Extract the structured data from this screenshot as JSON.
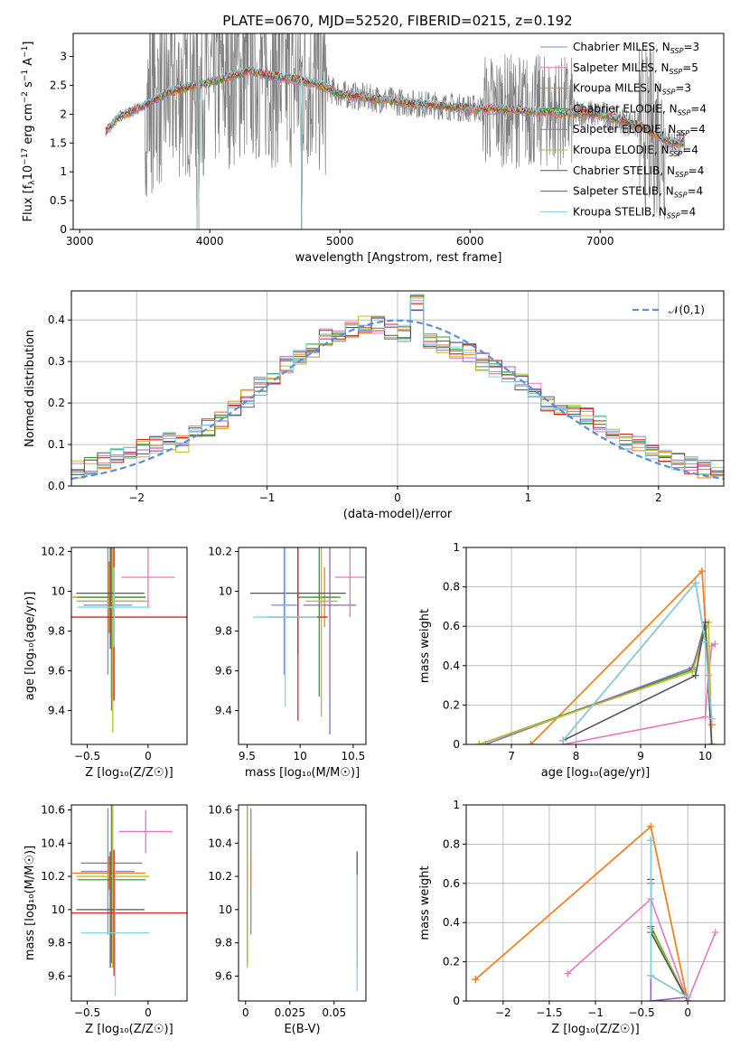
{
  "figure_title": "PLATE=0670, MJD=52520, FIBERID=0215, z=0.192",
  "legend_labels": [
    "Chabrier MILES, N_SSP=3",
    "Salpeter MILES, N_SSP=5",
    "Kroupa MILES, N_SSP=3",
    "Chabrier ELODIE, N_SSP=4",
    "Salpeter ELODIE, N_SSP=4",
    "Kroupa ELODIE, N_SSP=4",
    "Chabrier STELIB, N_SSP=4",
    "Salpeter STELIB, N_SSP=4",
    "Kroupa STELIB, N_SSP=4"
  ],
  "colors": [
    "#6f8fd0",
    "#e377c2",
    "#ff7f0e",
    "#2ca02c",
    "#9467bd",
    "#bcbd22",
    "#555555",
    "#d62728",
    "#7fd6e0"
  ],
  "data_color": "#808080",
  "chart_data": [
    {
      "type": "line",
      "panel": "spectrum",
      "title": "PLATE=0670, MJD=52520, FIBERID=0215, z=0.192",
      "xlabel": "wavelength [Angstrom, rest frame]",
      "ylabel": "Flux [f_λ 10^-17 erg cm^-2 s^-1 A^-1]",
      "xlim": [
        2950,
        7950
      ],
      "ylim": [
        0,
        3.4
      ],
      "xticks": [
        3000,
        4000,
        5000,
        6000,
        7000
      ],
      "yticks": [
        0.0,
        0.5,
        1.0,
        1.5,
        2.0,
        2.5,
        3.0
      ],
      "data_wavelength_range": [
        3200,
        7650
      ],
      "model_continuum": {
        "x": [
          3200,
          3300,
          3500,
          3700,
          4000,
          4300,
          4500,
          4800,
          5000,
          5500,
          6000,
          6500,
          7000,
          7300,
          7550
        ],
        "y": [
          1.7,
          1.95,
          2.15,
          2.4,
          2.55,
          2.75,
          2.65,
          2.55,
          2.35,
          2.2,
          2.1,
          2.05,
          2.0,
          1.8,
          1.5
        ]
      },
      "series_names": [
        "Chabrier MILES",
        "Salpeter MILES",
        "Kroupa MILES",
        "Chabrier ELODIE",
        "Salpeter ELODIE",
        "Kroupa ELODIE",
        "Chabrier STELIB",
        "Salpeter STELIB",
        "Kroupa STELIB"
      ],
      "n_ssp": [
        3,
        5,
        3,
        4,
        4,
        4,
        4,
        4,
        4
      ],
      "legend": "upper right"
    },
    {
      "type": "step",
      "panel": "residuals",
      "xlabel": "(data-model)/error",
      "ylabel": "Normed distribution",
      "xlim": [
        -2.5,
        2.5
      ],
      "ylim": [
        0,
        0.47
      ],
      "xticks": [
        -2,
        -1,
        0,
        1,
        2
      ],
      "yticks": [
        0.0,
        0.1,
        0.2,
        0.3,
        0.4
      ],
      "reference": {
        "name": "𝒩(0,1)",
        "mean": 0,
        "sigma": 1
      },
      "bins": [
        -2.5,
        -2.4,
        -2.3,
        -2.2,
        -2.1,
        -2.0,
        -1.9,
        -1.8,
        -1.7,
        -1.6,
        -1.5,
        -1.4,
        -1.3,
        -1.2,
        -1.1,
        -1.0,
        -0.9,
        -0.8,
        -0.7,
        -0.6,
        -0.5,
        -0.4,
        -0.3,
        -0.2,
        -0.1,
        0.0,
        0.1,
        0.2,
        0.3,
        0.4,
        0.5,
        0.6,
        0.7,
        0.8,
        0.9,
        1.0,
        1.1,
        1.2,
        1.3,
        1.4,
        1.5,
        1.6,
        1.7,
        1.8,
        1.9,
        2.0,
        2.1,
        2.2,
        2.3,
        2.4,
        2.5
      ],
      "histogram_values": [
        0.04,
        0.05,
        0.06,
        0.07,
        0.08,
        0.09,
        0.1,
        0.11,
        0.1,
        0.13,
        0.14,
        0.16,
        0.19,
        0.21,
        0.24,
        0.26,
        0.29,
        0.31,
        0.33,
        0.36,
        0.37,
        0.38,
        0.39,
        0.39,
        0.37,
        0.37,
        0.44,
        0.35,
        0.34,
        0.33,
        0.32,
        0.3,
        0.28,
        0.27,
        0.25,
        0.23,
        0.2,
        0.19,
        0.18,
        0.17,
        0.15,
        0.13,
        0.11,
        0.1,
        0.08,
        0.07,
        0.06,
        0.05,
        0.04,
        0.04
      ],
      "legend": "upper right"
    },
    {
      "type": "scatter_errorbar",
      "panel": "age_vs_Z",
      "xlabel": "Z [log10(Z/Z☉)]",
      "ylabel": "age [log10(age/yr)]",
      "xlim": [
        -0.63,
        0.32
      ],
      "ylim": [
        9.23,
        10.22
      ],
      "xticks": [
        -0.5,
        0.0
      ],
      "yticks": [
        9.4,
        9.6,
        9.8,
        10.0,
        10.2
      ],
      "points": [
        {
          "x": -0.33,
          "y": 9.93,
          "xerr": 0.2,
          "yerr": 0.35
        },
        {
          "x": 0.0,
          "y": 10.07,
          "xerr": 0.22,
          "yerr": 0.15
        },
        {
          "x": -0.32,
          "y": 9.97,
          "xerr": 0.3,
          "yerr": 0.18
        },
        {
          "x": -0.3,
          "y": 9.97,
          "xerr": 0.28,
          "yerr": 0.5
        },
        {
          "x": -0.3,
          "y": 9.95,
          "xerr": 0.27,
          "yerr": 0.55
        },
        {
          "x": -0.29,
          "y": 9.95,
          "xerr": 0.3,
          "yerr": 0.66
        },
        {
          "x": -0.31,
          "y": 9.99,
          "xerr": 0.28,
          "yerr": 0.28
        },
        {
          "x": -0.28,
          "y": 9.87,
          "xerr": 0.6,
          "yerr": 0.42
        },
        {
          "x": -0.28,
          "y": 9.92,
          "xerr": 0.3,
          "yerr": 0.2
        }
      ]
    },
    {
      "type": "scatter_errorbar",
      "panel": "age_vs_mass",
      "xlabel": "mass [log10(M/M☉)]",
      "ylabel": "",
      "xlim": [
        9.42,
        10.62
      ],
      "ylim": [
        9.23,
        10.22
      ],
      "xticks": [
        9.5,
        10.0,
        10.5
      ],
      "yticks": [
        9.4,
        9.6,
        9.8,
        10.0,
        10.2
      ],
      "points": [
        {
          "x": 9.85,
          "y": 9.93,
          "xerr": 0.12,
          "yerr": 0.35
        },
        {
          "x": 10.47,
          "y": 10.07,
          "xerr": 0.14,
          "yerr": 0.2
        },
        {
          "x": 10.23,
          "y": 9.97,
          "xerr": 0.1,
          "yerr": 0.15
        },
        {
          "x": 10.18,
          "y": 9.97,
          "xerr": 0.2,
          "yerr": 0.5
        },
        {
          "x": 10.28,
          "y": 9.93,
          "xerr": 0.25,
          "yerr": 0.65
        },
        {
          "x": 10.2,
          "y": 9.95,
          "xerr": 0.15,
          "yerr": 0.58
        },
        {
          "x": 9.98,
          "y": 9.99,
          "xerr": 0.45,
          "yerr": 0.3
        },
        {
          "x": 9.98,
          "y": 9.87,
          "xerr": 0.28,
          "yerr": 0.52
        },
        {
          "x": 9.86,
          "y": 9.87,
          "xerr": 0.3,
          "yerr": 0.45
        }
      ]
    },
    {
      "type": "line",
      "panel": "massweight_vs_age",
      "xlabel": "age [log10(age/yr)]",
      "ylabel": "mass weight",
      "xlim": [
        6.3,
        10.3
      ],
      "ylim": [
        0,
        1.0
      ],
      "xticks": [
        7,
        8,
        9,
        10
      ],
      "yticks": [
        0.0,
        0.2,
        0.4,
        0.6,
        0.8,
        1.0
      ],
      "series": [
        {
          "x": [
            7.3,
            9.95,
            10.1
          ],
          "y": [
            0.0,
            0.88,
            0.1
          ]
        },
        {
          "x": [
            7.8,
            10.0,
            10.05,
            10.1,
            10.15
          ],
          "y": [
            0.0,
            0.14,
            0.35,
            0.5,
            0.51
          ]
        },
        {
          "x": [
            7.3,
            9.95,
            10.1
          ],
          "y": [
            0.0,
            0.88,
            0.1
          ]
        },
        {
          "x": [
            6.5,
            9.8,
            10.0,
            10.1
          ],
          "y": [
            0.0,
            0.38,
            0.62,
            0.0
          ]
        },
        {
          "x": [
            6.6,
            9.8,
            10.0,
            10.1
          ],
          "y": [
            0.0,
            0.39,
            0.6,
            0.0
          ]
        },
        {
          "x": [
            6.5,
            9.8,
            10.05,
            10.1
          ],
          "y": [
            0.0,
            0.37,
            0.62,
            0.0
          ]
        },
        {
          "x": [
            7.8,
            9.85,
            10.0,
            10.1
          ],
          "y": [
            0.02,
            0.35,
            0.62,
            0.0
          ]
        },
        {
          "x": [
            7.8,
            9.85,
            10.0,
            10.1
          ],
          "y": [
            0.02,
            0.82,
            0.52,
            0.13
          ]
        },
        {
          "x": [
            7.8,
            9.85,
            10.0,
            10.1
          ],
          "y": [
            0.02,
            0.82,
            0.52,
            0.13
          ]
        }
      ]
    },
    {
      "type": "scatter_errorbar",
      "panel": "mass_vs_Z",
      "xlabel": "Z [log10(Z/Z☉)]",
      "ylabel": "mass [log10(M/M☉)]",
      "xlim": [
        -0.63,
        0.32
      ],
      "ylim": [
        9.45,
        10.63
      ],
      "xticks": [
        -0.5,
        0.0
      ],
      "yticks": [
        9.6,
        9.8,
        10.0,
        10.2,
        10.4,
        10.6
      ],
      "points": [
        {
          "x": -0.33,
          "y": 10.23,
          "xerr": 0.22,
          "yerr": 0.38
        },
        {
          "x": -0.02,
          "y": 10.47,
          "xerr": 0.22,
          "yerr": 0.13
        },
        {
          "x": -0.32,
          "y": 10.22,
          "xerr": 0.3,
          "yerr": 0.1
        },
        {
          "x": -0.3,
          "y": 10.18,
          "xerr": 0.28,
          "yerr": 0.5
        },
        {
          "x": -0.3,
          "y": 10.28,
          "xerr": 0.25,
          "yerr": 0.6
        },
        {
          "x": -0.29,
          "y": 10.2,
          "xerr": 0.3,
          "yerr": 0.55
        },
        {
          "x": -0.31,
          "y": 10.0,
          "xerr": 0.28,
          "yerr": 0.35
        },
        {
          "x": -0.28,
          "y": 9.98,
          "xerr": 0.6,
          "yerr": 0.38
        },
        {
          "x": -0.27,
          "y": 9.86,
          "xerr": 0.28,
          "yerr": 0.38
        }
      ]
    },
    {
      "type": "scatter_errorbar",
      "panel": "mass_vs_EBV",
      "xlabel": "E(B-V)",
      "ylabel": "",
      "xlim": [
        -0.004,
        0.068
      ],
      "ylim": [
        9.45,
        10.63
      ],
      "xticks": [
        0.0,
        0.025,
        0.05
      ],
      "yticks": [
        9.6,
        9.8,
        10.0,
        10.2,
        10.4,
        10.6
      ],
      "points": [
        {
          "x": 0.003,
          "y": 10.23,
          "xerr": 0.0,
          "yerr": 0.38
        },
        {
          "x": 0.001,
          "y": 10.47,
          "xerr": 0.0,
          "yerr": 0.13
        },
        {
          "x": 0.003,
          "y": 10.22,
          "xerr": 0.0,
          "yerr": 0.1
        },
        {
          "x": 0.001,
          "y": 10.18,
          "xerr": 0.0,
          "yerr": 0.5
        },
        {
          "x": 0.001,
          "y": 10.28,
          "xerr": 0.0,
          "yerr": 0.6
        },
        {
          "x": 0.001,
          "y": 10.2,
          "xerr": 0.0,
          "yerr": 0.55
        },
        {
          "x": 0.063,
          "y": 10.0,
          "xerr": 0.0,
          "yerr": 0.35
        },
        {
          "x": 0.063,
          "y": 9.98,
          "xerr": 0.0,
          "yerr": 0.23
        },
        {
          "x": 0.063,
          "y": 9.86,
          "xerr": 0.0,
          "yerr": 0.35
        }
      ]
    },
    {
      "type": "line",
      "panel": "massweight_vs_Z",
      "xlabel": "Z [log10(Z/Z☉)]",
      "ylabel": "mass weight",
      "xlim": [
        -2.4,
        0.4
      ],
      "ylim": [
        0,
        1.0
      ],
      "xticks": [
        -2.0,
        -1.5,
        -1.0,
        -0.5,
        0.0
      ],
      "yticks": [
        0.0,
        0.2,
        0.4,
        0.6,
        0.8,
        1.0
      ],
      "series": [
        {
          "x": [
            -2.3,
            -0.4,
            0.0
          ],
          "y": [
            0.11,
            0.89,
            0.0
          ]
        },
        {
          "x": [
            -1.3,
            -0.4,
            0.0,
            0.3
          ],
          "y": [
            0.14,
            0.52,
            0.0,
            0.35
          ]
        },
        {
          "x": [
            -2.3,
            -0.4,
            0.0
          ],
          "y": [
            0.11,
            0.89,
            0.0
          ]
        },
        {
          "x": [
            -0.4,
            -0.4,
            0.0
          ],
          "y": [
            0.82,
            0.38,
            0.0
          ]
        },
        {
          "x": [
            -0.4,
            -0.4,
            0.0
          ],
          "y": [
            0.6,
            0.0,
            0.02
          ]
        },
        {
          "x": [
            -0.4,
            -0.4,
            0.0
          ],
          "y": [
            0.62,
            0.37,
            0.0
          ]
        },
        {
          "x": [
            -0.4,
            -0.4,
            0.0
          ],
          "y": [
            0.62,
            0.35,
            0.0
          ]
        },
        {
          "x": [
            -0.4,
            -0.4,
            0.0
          ],
          "y": [
            0.82,
            0.13,
            0.02
          ]
        },
        {
          "x": [
            -0.4,
            -0.4,
            0.0
          ],
          "y": [
            0.82,
            0.13,
            0.02
          ]
        }
      ]
    }
  ]
}
